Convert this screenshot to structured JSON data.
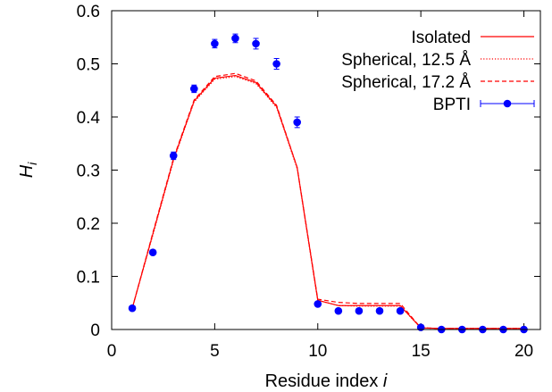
{
  "chart_data": {
    "type": "line",
    "title": "",
    "xlabel": "Residue index i",
    "xlabel_main": "Residue index ",
    "xlabel_var": "i",
    "ylabel": "H_i",
    "ylabel_main": "H",
    "ylabel_sub": "i",
    "xlim": [
      0,
      20.8
    ],
    "ylim": [
      0,
      0.6
    ],
    "xticks": [
      0,
      5,
      10,
      15,
      20
    ],
    "yticks": [
      0,
      0.1,
      0.2,
      0.3,
      0.4,
      0.5,
      0.6
    ],
    "xtick_labels": [
      "0",
      "5",
      "10",
      "15",
      "20"
    ],
    "ytick_labels": [
      "0",
      "0.1",
      "0.2",
      "0.3",
      "0.4",
      "0.5",
      "0.6"
    ],
    "grid": false,
    "legend_position": "top-right",
    "series": [
      {
        "name": "Isolated",
        "style": "solid",
        "color": "#ff0000",
        "x": [
          1,
          2,
          3,
          4,
          5,
          6,
          7,
          8,
          9,
          10,
          11,
          12,
          13,
          14,
          15,
          16,
          17,
          18,
          19,
          20
        ],
        "y": [
          0.04,
          0.18,
          0.32,
          0.43,
          0.473,
          0.478,
          0.465,
          0.42,
          0.305,
          0.055,
          0.045,
          0.045,
          0.045,
          0.045,
          0.003,
          0.002,
          0.002,
          0.002,
          0.002,
          0.002
        ]
      },
      {
        "name": "Spherical, 12.5 Å",
        "style": "dotted",
        "color": "#ff0000",
        "x": [
          1,
          2,
          3,
          4,
          5,
          6,
          7,
          8,
          9,
          10,
          11,
          12,
          13,
          14,
          15,
          16,
          17,
          18,
          19,
          20
        ],
        "y": [
          0.04,
          0.178,
          0.318,
          0.428,
          0.471,
          0.476,
          0.463,
          0.418,
          0.303,
          0.055,
          0.045,
          0.044,
          0.044,
          0.044,
          0.003,
          0.002,
          0.002,
          0.002,
          0.002,
          0.002
        ]
      },
      {
        "name": "Spherical, 17.2 Å",
        "style": "dashed",
        "color": "#ff0000",
        "x": [
          1,
          2,
          3,
          4,
          5,
          6,
          7,
          8,
          9,
          10,
          11,
          12,
          13,
          14,
          15,
          16,
          17,
          18,
          19,
          20
        ],
        "y": [
          0.04,
          0.182,
          0.322,
          0.432,
          0.476,
          0.482,
          0.468,
          0.422,
          0.305,
          0.057,
          0.051,
          0.049,
          0.049,
          0.049,
          0.003,
          0.002,
          0.002,
          0.002,
          0.002,
          0.002
        ]
      },
      {
        "name": "BPTI",
        "style": "points-errorbars",
        "color": "#0000ff",
        "x": [
          1,
          2,
          3,
          4,
          5,
          6,
          7,
          8,
          9,
          10,
          11,
          12,
          13,
          14,
          15,
          16,
          17,
          18,
          19,
          20
        ],
        "y": [
          0.04,
          0.145,
          0.327,
          0.453,
          0.538,
          0.548,
          0.538,
          0.5,
          0.39,
          0.048,
          0.035,
          0.035,
          0.035,
          0.035,
          0.004,
          0.0,
          0.0,
          0.0,
          0.0,
          0.0
        ],
        "err": [
          0.003,
          0.003,
          0.007,
          0.007,
          0.008,
          0.008,
          0.01,
          0.01,
          0.01,
          0.003,
          0.003,
          0.003,
          0.003,
          0.003,
          0.002,
          0.001,
          0.001,
          0.001,
          0.001,
          0.001
        ]
      }
    ]
  }
}
